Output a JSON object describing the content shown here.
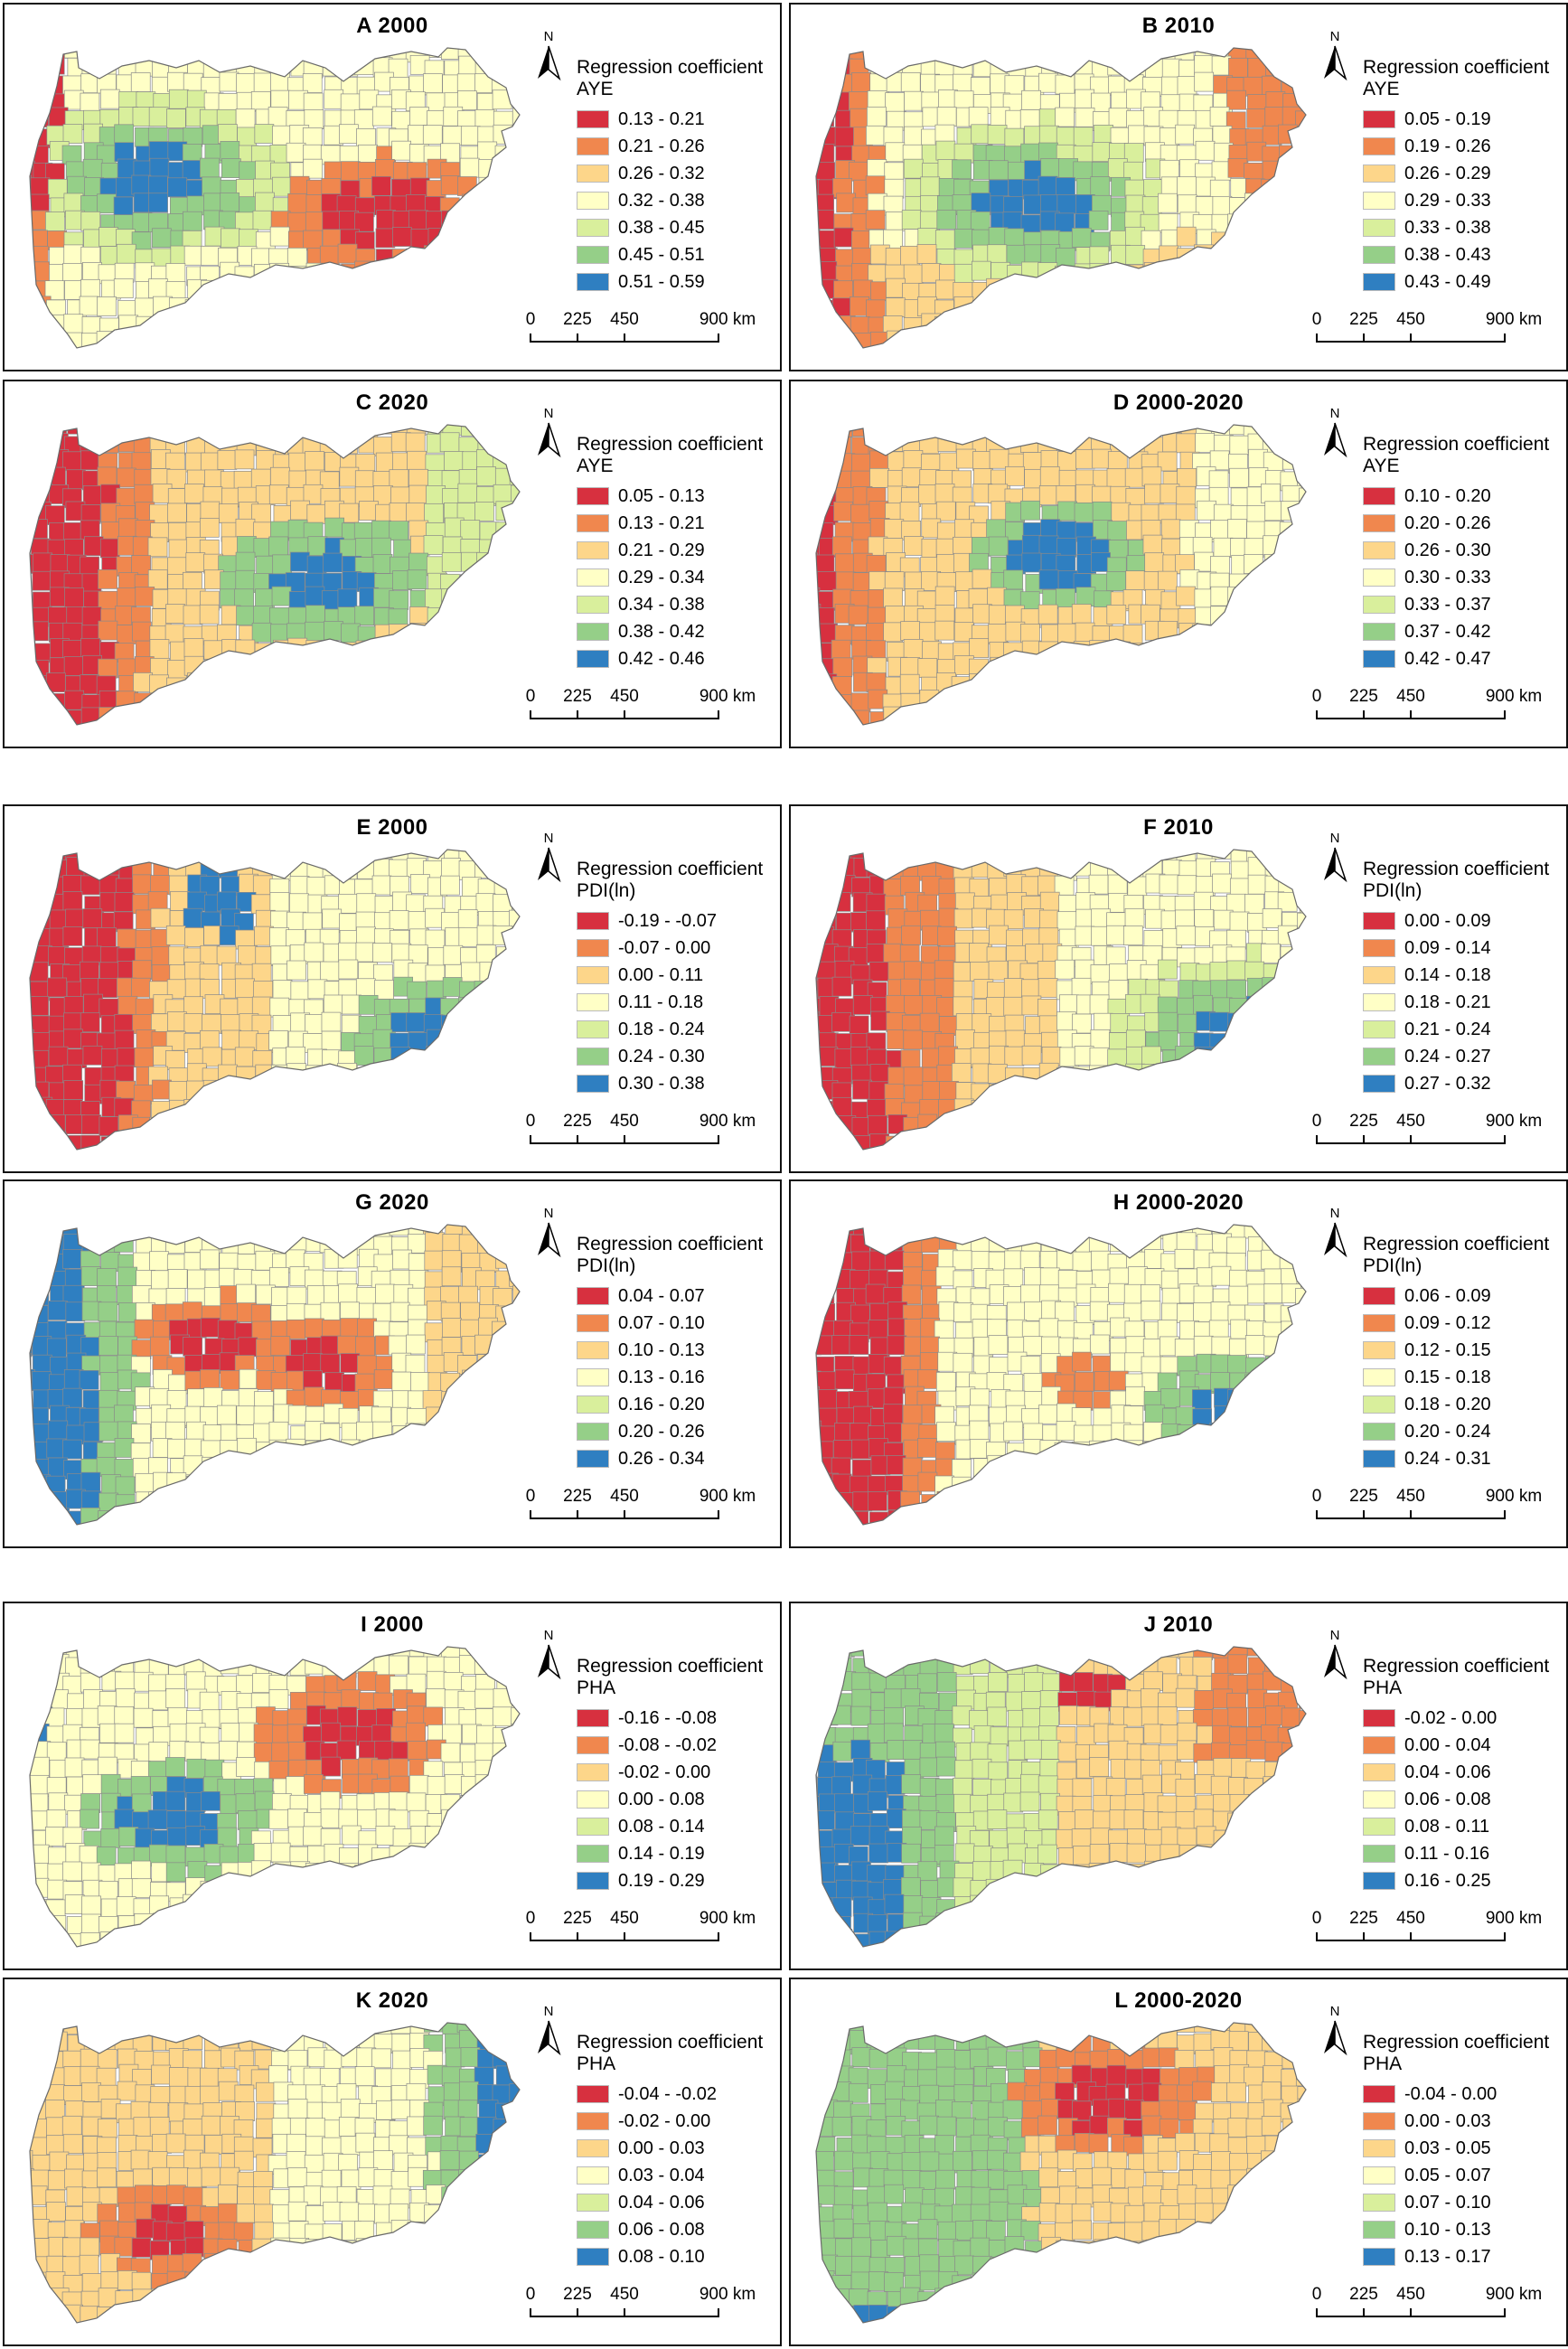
{
  "legend_title": "Regression coefficient",
  "scale_ticks": [
    "0",
    "225",
    "450",
    "900 km"
  ],
  "north_label": "N",
  "palette": [
    "#d7303f",
    "#f0874e",
    "#fdd68a",
    "#ffffc6",
    "#d9ef9c",
    "#95cf88",
    "#2f7fc1"
  ],
  "panels": [
    {
      "letter": "A",
      "year": "2000",
      "var": "AYE",
      "classes": [
        "0.13 - 0.21",
        "0.21 - 0.26",
        "0.26 - 0.32",
        "0.32 - 0.38",
        "0.38 - 0.45",
        "0.45 - 0.51",
        "0.51 - 0.59"
      ]
    },
    {
      "letter": "B",
      "year": "2010",
      "var": "AYE",
      "classes": [
        "0.05 - 0.19",
        "0.19 - 0.26",
        "0.26 - 0.29",
        "0.29 - 0.33",
        "0.33 - 0.38",
        "0.38 - 0.43",
        "0.43 - 0.49"
      ]
    },
    {
      "letter": "C",
      "year": "2020",
      "var": "AYE",
      "classes": [
        "0.05 - 0.13",
        "0.13 - 0.21",
        "0.21 - 0.29",
        "0.29 - 0.34",
        "0.34 - 0.38",
        "0.38 - 0.42",
        "0.42 - 0.46"
      ]
    },
    {
      "letter": "D",
      "year": "2000-2020",
      "var": "AYE",
      "classes": [
        "0.10 - 0.20",
        "0.20 - 0.26",
        "0.26 - 0.30",
        "0.30 - 0.33",
        "0.33 - 0.37",
        "0.37 - 0.42",
        "0.42 - 0.47"
      ]
    },
    {
      "letter": "E",
      "year": "2000",
      "var": "PDI(ln)",
      "classes": [
        "-0.19 - -0.07",
        "-0.07 - 0.00",
        "0.00 - 0.11",
        "0.11 - 0.18",
        "0.18 - 0.24",
        "0.24 - 0.30",
        "0.30 - 0.38"
      ]
    },
    {
      "letter": "F",
      "year": "2010",
      "var": "PDI(ln)",
      "classes": [
        "0.00 - 0.09",
        "0.09 - 0.14",
        "0.14 - 0.18",
        "0.18 - 0.21",
        "0.21 - 0.24",
        "0.24 - 0.27",
        "0.27 - 0.32"
      ]
    },
    {
      "letter": "G",
      "year": "2020",
      "var": "PDI(ln)",
      "classes": [
        "0.04 - 0.07",
        "0.07 - 0.10",
        "0.10 - 0.13",
        "0.13 - 0.16",
        "0.16 - 0.20",
        "0.20 - 0.26",
        "0.26 - 0.34"
      ]
    },
    {
      "letter": "H",
      "year": "2000-2020",
      "var": "PDI(ln)",
      "classes": [
        "0.06 - 0.09",
        "0.09 - 0.12",
        "0.12 - 0.15",
        "0.15 - 0.18",
        "0.18 - 0.20",
        "0.20 - 0.24",
        "0.24 - 0.31"
      ]
    },
    {
      "letter": "I",
      "year": "2000",
      "var": "PHA",
      "classes": [
        "-0.16 - -0.08",
        "-0.08 - -0.02",
        "-0.02 - 0.00",
        "0.00 - 0.08",
        "0.08 - 0.14",
        "0.14 - 0.19",
        "0.19 - 0.29"
      ]
    },
    {
      "letter": "J",
      "year": "2010",
      "var": "PHA",
      "classes": [
        "-0.02 - 0.00",
        "0.00 - 0.04",
        "0.04 - 0.06",
        "0.06 - 0.08",
        "0.08 - 0.11",
        "0.11 - 0.16",
        "0.16 - 0.25"
      ]
    },
    {
      "letter": "K",
      "year": "2020",
      "var": "PHA",
      "classes": [
        "-0.04 - -0.02",
        "-0.02 - 0.00",
        "0.00 - 0.03",
        "0.03 - 0.04",
        "0.04 - 0.06",
        "0.06 - 0.08",
        "0.08 - 0.10"
      ]
    },
    {
      "letter": "L",
      "year": "2000-2020",
      "var": "PHA",
      "classes": [
        "-0.04 - 0.00",
        "0.00 - 0.03",
        "0.03 - 0.05",
        "0.05 - 0.07",
        "0.07 - 0.10",
        "0.10 - 0.13",
        "0.13 - 0.17"
      ]
    }
  ]
}
